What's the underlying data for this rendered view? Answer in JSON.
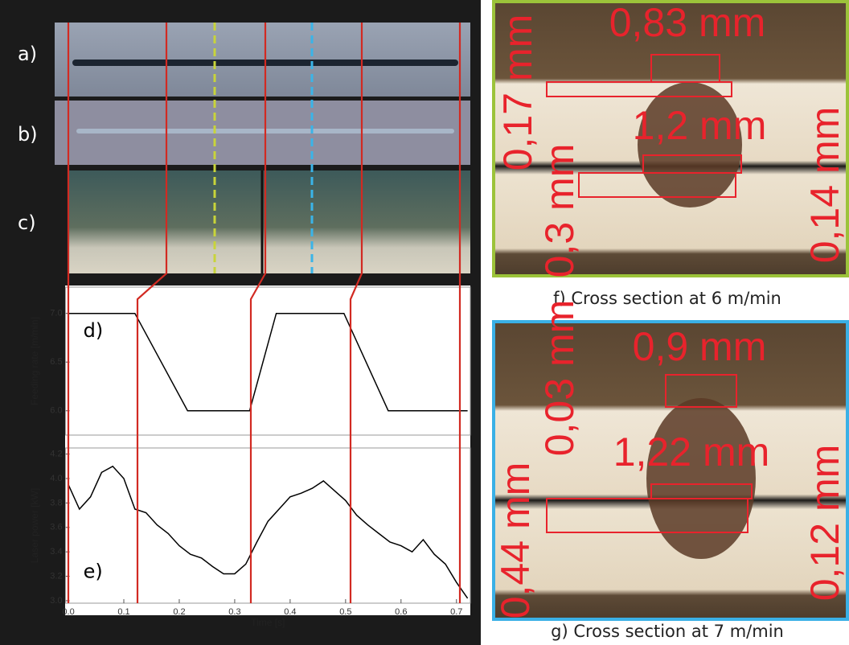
{
  "figure": {
    "panel_labels": [
      "a)",
      "b)",
      "c)"
    ]
  },
  "chart_data": [
    {
      "type": "line",
      "label": "d)",
      "ylabel": "Feeding rate [m/min]",
      "color": "#000000",
      "x": [
        0,
        0.12,
        0.215,
        0.327,
        0.375,
        0.497,
        0.577,
        0.72
      ],
      "values": [
        7.0,
        7.0,
        6.0,
        6.0,
        7.0,
        7.0,
        6.0,
        6.0
      ],
      "xlim": [
        -0.005,
        0.725
      ],
      "ylim": [
        5.75,
        7.27
      ],
      "yticks": [
        {
          "value": 6,
          "label": "6.0"
        },
        6.5,
        {
          "value": 7,
          "label": "7.0"
        }
      ]
    },
    {
      "type": "line",
      "label": "e)",
      "ylabel": "Laser power [kW]",
      "xlabel": "Time [s]",
      "color": "#000000",
      "x": [
        0,
        0.02,
        0.04,
        0.06,
        0.08,
        0.1,
        0.12,
        0.14,
        0.16,
        0.18,
        0.2,
        0.22,
        0.24,
        0.26,
        0.28,
        0.3,
        0.32,
        0.34,
        0.36,
        0.38,
        0.4,
        0.42,
        0.44,
        0.46,
        0.48,
        0.5,
        0.52,
        0.54,
        0.56,
        0.58,
        0.6,
        0.62,
        0.64,
        0.66,
        0.68,
        0.7,
        0.72
      ],
      "values": [
        3.95,
        3.75,
        3.85,
        4.05,
        4.1,
        4.0,
        3.75,
        3.72,
        3.62,
        3.55,
        3.45,
        3.38,
        3.35,
        3.28,
        3.22,
        3.22,
        3.3,
        3.48,
        3.65,
        3.75,
        3.85,
        3.88,
        3.92,
        3.98,
        3.9,
        3.82,
        3.7,
        3.62,
        3.55,
        3.48,
        3.45,
        3.4,
        3.5,
        3.38,
        3.3,
        3.15,
        3.02
      ],
      "xlim": [
        -0.005,
        0.725
      ],
      "ylim": [
        2.98,
        4.25
      ],
      "xticks": [
        {
          "value": 0,
          "label": "0.0"
        },
        0.1,
        0.2,
        0.3,
        0.4,
        0.5,
        0.6,
        0.7
      ],
      "yticks": [
        {
          "value": 3,
          "label": "3.0"
        },
        3.2,
        3.4,
        3.6,
        3.8,
        {
          "value": 4,
          "label": "4.0"
        },
        4.2
      ]
    }
  ],
  "cross_sections": [
    {
      "caption": "f) Cross section at 6 m/min",
      "measurements": [
        "0,83 mm",
        "0,17 mm",
        "1,2 mm",
        "0,3 mm",
        "0,14 mm"
      ]
    },
    {
      "caption": "g) Cross section at 7 m/min",
      "measurements": [
        "0,9 mm",
        "0,03 mm",
        "1,22 mm",
        "0,44 mm",
        "0,12 mm"
      ]
    }
  ]
}
